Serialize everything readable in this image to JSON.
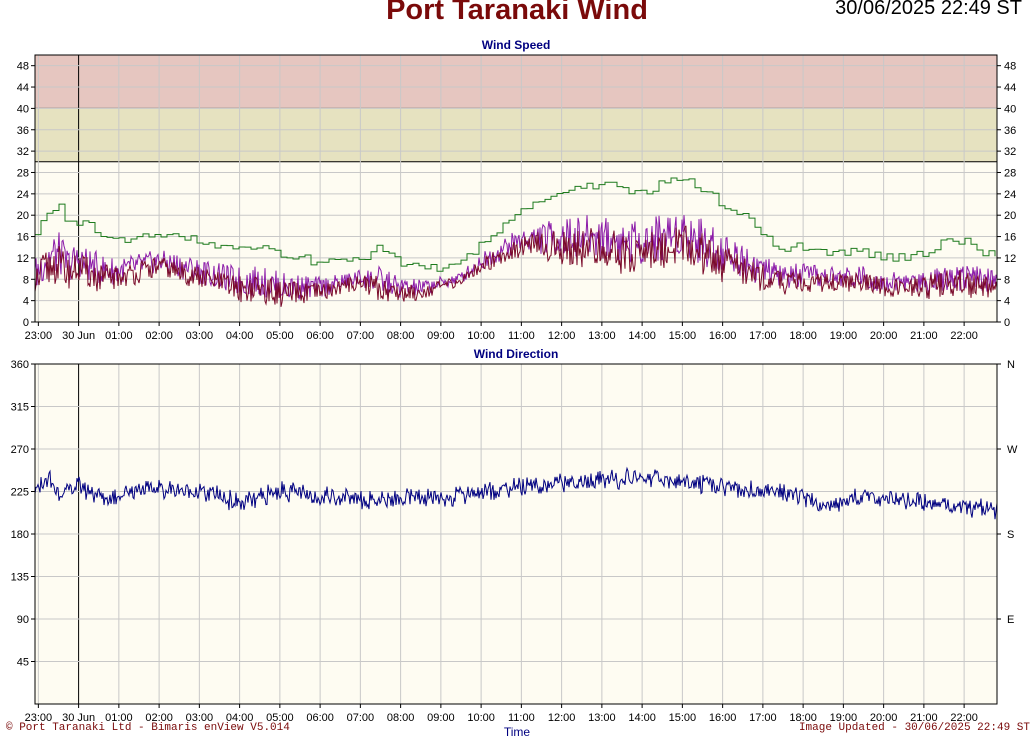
{
  "header": {
    "title": "Port Taranaki Wind",
    "timestamp": "30/06/2025 22:49 ST"
  },
  "footer": {
    "copyright": "© Port Taranaki Ltd - Bimaris enView V5.014",
    "updated": "Image Updated - 30/06/2025 22:49 ST",
    "xaxis_title": "Time"
  },
  "colors": {
    "gust": "#1c7a1c",
    "mean": "#7a0a2a",
    "speed_detail": "#8b1aa8",
    "direction": "#000080",
    "band_danger": "#e6c6c0",
    "band_warning": "#e6e2c0",
    "plot_bg": "#fefcf2",
    "title": "#7a0a0a"
  },
  "chart_data": [
    {
      "type": "line",
      "title": "Wind Speed",
      "x_ticks": [
        "23:00",
        "30 Jun",
        "01:00",
        "02:00",
        "03:00",
        "04:00",
        "05:00",
        "06:00",
        "07:00",
        "08:00",
        "09:00",
        "10:00",
        "11:00",
        "12:00",
        "13:00",
        "14:00",
        "15:00",
        "16:00",
        "17:00",
        "18:00",
        "19:00",
        "20:00",
        "21:00",
        "22:00"
      ],
      "x_range": [
        "29/06 22:55",
        "30/06 22:49"
      ],
      "ylim": [
        0,
        50
      ],
      "y_ticks": [
        0,
        4,
        8,
        12,
        16,
        20,
        24,
        28,
        32,
        36,
        40,
        44,
        48
      ],
      "bands": [
        {
          "from": 40,
          "to": 50,
          "level": "danger"
        },
        {
          "from": 30,
          "to": 40,
          "level": "warning"
        }
      ],
      "series": [
        {
          "key": "gust",
          "x": [
            "22:55",
            "23:10",
            "23:30",
            "23:45",
            "00:00",
            "00:15",
            "00:30",
            "00:45",
            "01:00",
            "01:30",
            "02:00",
            "02:30",
            "03:00",
            "03:30",
            "04:00",
            "04:30",
            "05:00",
            "05:30",
            "06:00",
            "06:30",
            "07:00",
            "07:30",
            "08:00",
            "08:30",
            "09:00",
            "09:30",
            "10:00",
            "10:30",
            "11:00",
            "11:30",
            "12:00",
            "12:30",
            "13:00",
            "13:30",
            "14:00",
            "14:30",
            "15:00",
            "15:30",
            "16:00",
            "16:30",
            "17:00",
            "17:30",
            "18:00",
            "18:30",
            "19:00",
            "19:30",
            "20:00",
            "20:30",
            "21:00",
            "21:30",
            "22:00",
            "22:30",
            "22:49"
          ],
          "values": [
            16,
            21,
            22,
            18,
            19,
            18,
            17,
            16,
            15,
            16,
            16,
            16,
            15,
            14,
            14,
            14,
            13,
            12,
            11,
            11,
            12,
            14,
            11,
            10,
            10,
            11,
            15,
            18,
            21,
            23,
            24,
            25,
            26,
            25,
            24,
            26,
            27,
            25,
            22,
            20,
            16,
            14,
            14,
            13,
            13,
            13,
            12,
            12,
            13,
            15,
            15,
            13,
            13
          ]
        },
        {
          "key": "mean",
          "x": [
            "22:55",
            "23:10",
            "23:30",
            "23:45",
            "00:00",
            "00:15",
            "00:30",
            "00:45",
            "01:00",
            "01:30",
            "02:00",
            "02:30",
            "03:00",
            "03:30",
            "04:00",
            "04:30",
            "05:00",
            "05:30",
            "06:00",
            "06:30",
            "07:00",
            "07:30",
            "08:00",
            "08:30",
            "09:00",
            "09:30",
            "10:00",
            "10:30",
            "11:00",
            "11:30",
            "12:00",
            "12:30",
            "13:00",
            "13:30",
            "14:00",
            "14:30",
            "15:00",
            "15:30",
            "16:00",
            "16:30",
            "17:00",
            "17:30",
            "18:00",
            "18:30",
            "19:00",
            "19:30",
            "20:00",
            "20:30",
            "21:00",
            "21:30",
            "22:00",
            "22:30",
            "22:49"
          ],
          "values": [
            8,
            11,
            12,
            10,
            11,
            10,
            9,
            9,
            9,
            10,
            11,
            10,
            9,
            8,
            7,
            7,
            6,
            6,
            6,
            7,
            8,
            7,
            6,
            6,
            7,
            8,
            11,
            13,
            15,
            15,
            15,
            15,
            15,
            14,
            14,
            15,
            16,
            14,
            12,
            11,
            9,
            8,
            8,
            8,
            8,
            8,
            7,
            7,
            7,
            8,
            8,
            7,
            8
          ]
        }
      ]
    },
    {
      "type": "line",
      "title": "Wind Direction",
      "x_ticks": [
        "23:00",
        "30 Jun",
        "01:00",
        "02:00",
        "03:00",
        "04:00",
        "05:00",
        "06:00",
        "07:00",
        "08:00",
        "09:00",
        "10:00",
        "11:00",
        "12:00",
        "13:00",
        "14:00",
        "15:00",
        "16:00",
        "17:00",
        "18:00",
        "19:00",
        "20:00",
        "21:00",
        "22:00"
      ],
      "xlabel": "Time",
      "ylim": [
        0,
        360
      ],
      "y_ticks": [
        45,
        90,
        135,
        180,
        225,
        270,
        315,
        360
      ],
      "y2_ticks": [
        {
          "value": 360,
          "label": "N"
        },
        {
          "value": 270,
          "label": "W"
        },
        {
          "value": 180,
          "label": "S"
        },
        {
          "value": 90,
          "label": "E"
        }
      ],
      "series": [
        {
          "key": "direction",
          "x": [
            "22:55",
            "23:15",
            "23:30",
            "23:45",
            "00:00",
            "00:15",
            "00:30",
            "00:45",
            "01:00",
            "01:30",
            "02:00",
            "02:30",
            "03:00",
            "03:30",
            "04:00",
            "04:30",
            "05:00",
            "05:30",
            "06:00",
            "06:30",
            "07:00",
            "07:30",
            "08:00",
            "08:30",
            "09:00",
            "09:30",
            "10:00",
            "10:30",
            "11:00",
            "11:30",
            "12:00",
            "12:30",
            "13:00",
            "13:30",
            "14:00",
            "14:30",
            "15:00",
            "15:30",
            "16:00",
            "16:30",
            "17:00",
            "17:30",
            "18:00",
            "18:30",
            "19:00",
            "19:30",
            "20:00",
            "20:30",
            "21:00",
            "21:30",
            "22:00",
            "22:30",
            "22:49"
          ],
          "values": [
            225,
            240,
            222,
            226,
            232,
            225,
            220,
            218,
            222,
            227,
            228,
            226,
            225,
            220,
            212,
            218,
            225,
            222,
            220,
            220,
            218,
            215,
            217,
            218,
            218,
            222,
            225,
            228,
            230,
            232,
            233,
            235,
            237,
            238,
            240,
            238,
            235,
            232,
            230,
            227,
            226,
            224,
            218,
            210,
            214,
            222,
            216,
            214,
            212,
            210,
            211,
            206,
            207
          ]
        }
      ]
    }
  ]
}
